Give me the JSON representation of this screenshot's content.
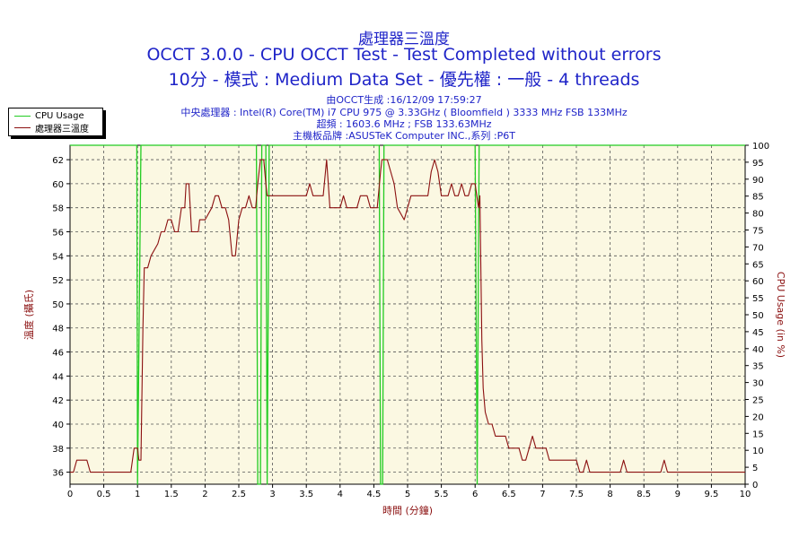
{
  "chart_data": {
    "type": "line",
    "title": "處理器三溫度",
    "subtitle_1": "OCCT 3.0.0 - CPU OCCT Test - Test Completed without errors",
    "subtitle_2": "10分 - 模式 : Medium Data Set - 優先權 : 一般 - 4 threads",
    "info_lines": [
      "由OCCT生成 :16/12/09 17:59:27",
      "中央處理器 : Intel(R) Core(TM) i7 CPU 975 @ 3.33GHz ( Bloomfield ) 3333 MHz FSB 133MHz",
      "超頻 : 1603.6 MHz ; FSB 133.63MHz",
      "主機板品牌 :ASUSTeK Computer INC.,系列 :P6T"
    ],
    "xlabel": "時間 (分鐘)",
    "ylabel_left": "溫度 (攝氏)",
    "ylabel_right": "CPU Usage (in %)",
    "xlim": [
      0,
      10
    ],
    "ylim_left": [
      35,
      63.2
    ],
    "ylim_right": [
      0,
      100
    ],
    "x_ticks": [
      "0",
      "0.5",
      "1",
      "1.5",
      "2",
      "2.5",
      "3",
      "3.5",
      "4",
      "4.5",
      "5",
      "5.5",
      "6",
      "6.5",
      "7",
      "7.5",
      "8",
      "8.5",
      "9",
      "9.5",
      "10"
    ],
    "y_ticks_left": [
      "36",
      "38",
      "40",
      "42",
      "44",
      "46",
      "48",
      "50",
      "52",
      "54",
      "56",
      "58",
      "60",
      "62"
    ],
    "y_ticks_right": [
      "0",
      "5",
      "10",
      "15",
      "20",
      "25",
      "30",
      "35",
      "40",
      "45",
      "50",
      "55",
      "60",
      "65",
      "70",
      "75",
      "80",
      "85",
      "90",
      "95",
      "100"
    ],
    "grid": true,
    "legend_position": "top-left",
    "series": [
      {
        "name": "CPU Usage",
        "axis": "right",
        "color": "#22cc22",
        "points": [
          [
            0,
            100
          ],
          [
            0.99,
            100
          ],
          [
            1.0,
            0
          ],
          [
            1.05,
            100
          ],
          [
            2.76,
            100
          ],
          [
            2.78,
            0
          ],
          [
            2.82,
            0
          ],
          [
            2.84,
            100
          ],
          [
            2.9,
            100
          ],
          [
            2.92,
            0
          ],
          [
            2.95,
            100
          ],
          [
            4.58,
            100
          ],
          [
            4.6,
            0
          ],
          [
            4.63,
            0
          ],
          [
            4.65,
            100
          ],
          [
            6.0,
            100
          ],
          [
            6.03,
            0
          ],
          [
            6.06,
            100
          ],
          [
            10,
            100
          ]
        ]
      },
      {
        "name": "處理器三溫度",
        "axis": "left",
        "color": "#8b1010",
        "points": [
          [
            0,
            36
          ],
          [
            0.05,
            36
          ],
          [
            0.1,
            37
          ],
          [
            0.25,
            37
          ],
          [
            0.3,
            36
          ],
          [
            0.9,
            36
          ],
          [
            0.95,
            38
          ],
          [
            1.0,
            38
          ],
          [
            1.02,
            37
          ],
          [
            1.05,
            37
          ],
          [
            1.08,
            48
          ],
          [
            1.1,
            53
          ],
          [
            1.15,
            53
          ],
          [
            1.2,
            54
          ],
          [
            1.3,
            55
          ],
          [
            1.35,
            56
          ],
          [
            1.4,
            56
          ],
          [
            1.45,
            57
          ],
          [
            1.5,
            57
          ],
          [
            1.55,
            56
          ],
          [
            1.6,
            56
          ],
          [
            1.65,
            58
          ],
          [
            1.7,
            58
          ],
          [
            1.72,
            60
          ],
          [
            1.76,
            60
          ],
          [
            1.8,
            56
          ],
          [
            1.9,
            56
          ],
          [
            1.92,
            57
          ],
          [
            2.0,
            57
          ],
          [
            2.1,
            58
          ],
          [
            2.15,
            59
          ],
          [
            2.2,
            59
          ],
          [
            2.25,
            58
          ],
          [
            2.3,
            58
          ],
          [
            2.35,
            57
          ],
          [
            2.4,
            54
          ],
          [
            2.45,
            54
          ],
          [
            2.5,
            57
          ],
          [
            2.55,
            58
          ],
          [
            2.6,
            58
          ],
          [
            2.65,
            59
          ],
          [
            2.7,
            58
          ],
          [
            2.75,
            58
          ],
          [
            2.78,
            60
          ],
          [
            2.82,
            62
          ],
          [
            2.87,
            62
          ],
          [
            2.9,
            60
          ],
          [
            2.92,
            59
          ],
          [
            3.0,
            59
          ],
          [
            3.5,
            59
          ],
          [
            3.55,
            60
          ],
          [
            3.6,
            59
          ],
          [
            3.75,
            59
          ],
          [
            3.8,
            62
          ],
          [
            3.85,
            58
          ],
          [
            4.0,
            58
          ],
          [
            4.05,
            59
          ],
          [
            4.1,
            58
          ],
          [
            4.25,
            58
          ],
          [
            4.3,
            59
          ],
          [
            4.4,
            59
          ],
          [
            4.45,
            58
          ],
          [
            4.55,
            58
          ],
          [
            4.6,
            61
          ],
          [
            4.62,
            62
          ],
          [
            4.7,
            62
          ],
          [
            4.75,
            61
          ],
          [
            4.8,
            60
          ],
          [
            4.85,
            58
          ],
          [
            4.95,
            57
          ],
          [
            5.0,
            58
          ],
          [
            5.05,
            59
          ],
          [
            5.3,
            59
          ],
          [
            5.35,
            61
          ],
          [
            5.4,
            62
          ],
          [
            5.45,
            61
          ],
          [
            5.5,
            59
          ],
          [
            5.6,
            59
          ],
          [
            5.65,
            60
          ],
          [
            5.7,
            59
          ],
          [
            5.75,
            59
          ],
          [
            5.8,
            60
          ],
          [
            5.85,
            59
          ],
          [
            5.9,
            59
          ],
          [
            5.95,
            60
          ],
          [
            6.0,
            60
          ],
          [
            6.05,
            58
          ],
          [
            6.07,
            59
          ],
          [
            6.1,
            47
          ],
          [
            6.12,
            43
          ],
          [
            6.15,
            41
          ],
          [
            6.2,
            40
          ],
          [
            6.25,
            40
          ],
          [
            6.3,
            39
          ],
          [
            6.45,
            39
          ],
          [
            6.5,
            38
          ],
          [
            6.65,
            38
          ],
          [
            6.7,
            37
          ],
          [
            6.75,
            37
          ],
          [
            6.8,
            38
          ],
          [
            6.85,
            39
          ],
          [
            6.9,
            38
          ],
          [
            7.05,
            38
          ],
          [
            7.1,
            37
          ],
          [
            7.5,
            37
          ],
          [
            7.55,
            36
          ],
          [
            7.6,
            36
          ],
          [
            7.65,
            37
          ],
          [
            7.7,
            36
          ],
          [
            8.15,
            36
          ],
          [
            8.2,
            37
          ],
          [
            8.25,
            36
          ],
          [
            8.75,
            36
          ],
          [
            8.8,
            37
          ],
          [
            8.85,
            36
          ],
          [
            10,
            36
          ]
        ]
      }
    ]
  },
  "legend": {
    "item_1": "CPU Usage",
    "item_2": "處理器三溫度"
  }
}
